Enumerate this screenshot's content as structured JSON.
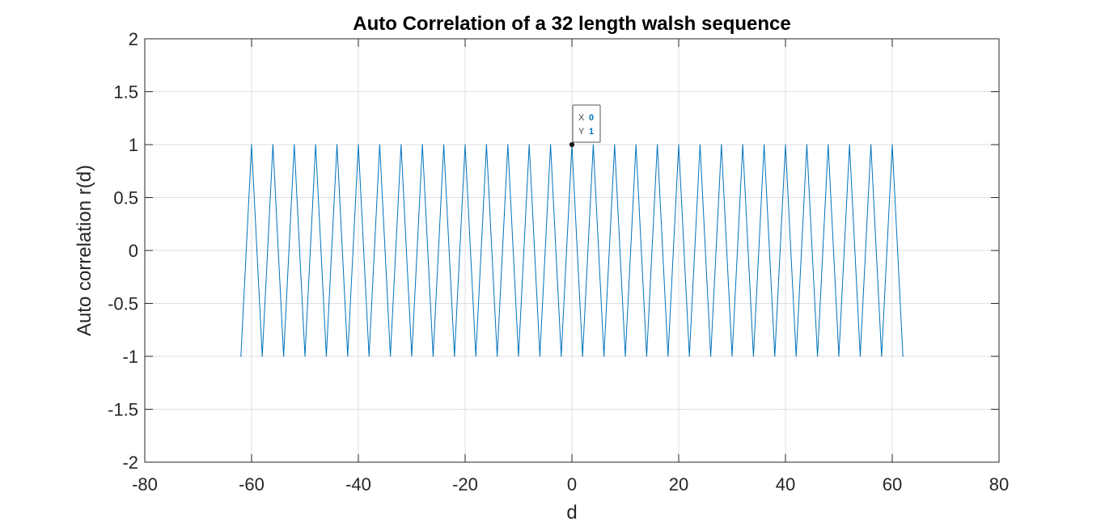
{
  "chart_data": {
    "type": "line",
    "title": "Auto Correlation of a 32 length walsh sequence",
    "xlabel": "d",
    "ylabel": "Auto correlation r(d)",
    "xlim": [
      -80,
      80
    ],
    "ylim": [
      -2,
      2
    ],
    "xticks": [
      -80,
      -60,
      -40,
      -20,
      0,
      20,
      40,
      60,
      80
    ],
    "xtick_labels": [
      "-80",
      "-60",
      "-40",
      "-20",
      "0",
      "20",
      "40",
      "60",
      "80"
    ],
    "yticks": [
      -2,
      -1.5,
      -1,
      -0.5,
      0,
      0.5,
      1,
      1.5,
      2
    ],
    "ytick_labels": [
      "-2",
      "-1.5",
      "-1",
      "-0.5",
      "0",
      "0.5",
      "1",
      "1.5",
      "2"
    ],
    "grid": true,
    "series": [
      {
        "color": "#0072bd",
        "x": [
          -62,
          -60,
          -58,
          -56,
          -54,
          -52,
          -50,
          -48,
          -46,
          -44,
          -42,
          -40,
          -38,
          -36,
          -34,
          -32,
          -30,
          -28,
          -26,
          -24,
          -22,
          -20,
          -18,
          -16,
          -14,
          -12,
          -10,
          -8,
          -6,
          -4,
          -2,
          0,
          2,
          4,
          6,
          8,
          10,
          12,
          14,
          16,
          18,
          20,
          22,
          24,
          26,
          28,
          30,
          32,
          34,
          36,
          38,
          40,
          42,
          44,
          46,
          48,
          50,
          52,
          54,
          56,
          58,
          60,
          62
        ],
        "values": [
          -1,
          1,
          -1,
          1,
          -1,
          1,
          -1,
          1,
          -1,
          1,
          -1,
          1,
          -1,
          1,
          -1,
          1,
          -1,
          1,
          -1,
          1,
          -1,
          1,
          -1,
          1,
          -1,
          1,
          -1,
          1,
          -1,
          1,
          -1,
          1,
          -1,
          1,
          -1,
          1,
          -1,
          1,
          -1,
          1,
          -1,
          1,
          -1,
          1,
          -1,
          1,
          -1,
          1,
          -1,
          1,
          -1,
          1,
          -1,
          1,
          -1,
          1,
          -1,
          1,
          -1,
          1,
          -1,
          1,
          -1
        ]
      }
    ],
    "datatip": {
      "x_label": "X",
      "x_value": "0",
      "y_label": "Y",
      "y_value": "1",
      "x": 0,
      "y": 1
    }
  }
}
